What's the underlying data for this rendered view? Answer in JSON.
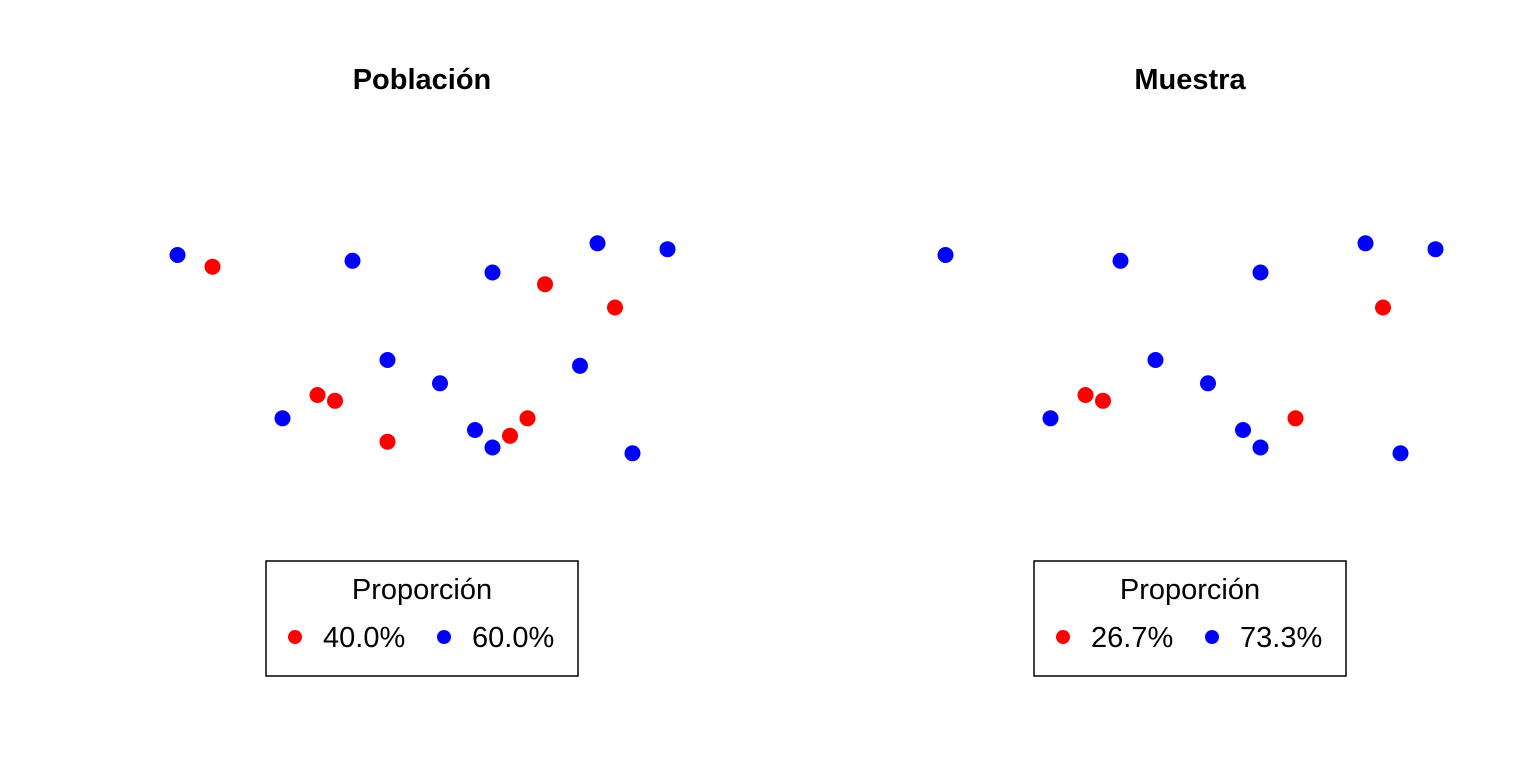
{
  "chart_data": [
    {
      "type": "scatter",
      "title": "Población",
      "xlabel": "",
      "ylabel": "",
      "xlim": [
        0,
        30
      ],
      "ylim": [
        0,
        30
      ],
      "grid": false,
      "axes_visible": false,
      "legend_position": "bottom",
      "legend": {
        "title": "Proporción",
        "entries": [
          {
            "label": "40.0%",
            "color": "#ff0000"
          },
          {
            "label": "60.0%",
            "color": "#0000ff"
          }
        ]
      },
      "series": [
        {
          "color": "#ff0000",
          "points": [
            [
              3,
              23
            ],
            [
              9,
              12
            ],
            [
              10,
              11.5
            ],
            [
              13,
              8
            ],
            [
              20,
              8.5
            ],
            [
              21,
              10
            ],
            [
              22,
              21.5
            ],
            [
              26,
              19.5
            ]
          ]
        },
        {
          "color": "#0000ff",
          "points": [
            [
              1,
              24
            ],
            [
              7,
              10
            ],
            [
              11,
              23.5
            ],
            [
              13,
              15
            ],
            [
              16,
              13
            ],
            [
              18,
              9
            ],
            [
              19,
              22.5
            ],
            [
              19,
              7.5
            ],
            [
              24,
              14.5
            ],
            [
              25,
              25
            ],
            [
              27,
              7
            ],
            [
              29,
              24.5
            ]
          ]
        }
      ]
    },
    {
      "type": "scatter",
      "title": "Muestra",
      "xlabel": "",
      "ylabel": "",
      "xlim": [
        0,
        30
      ],
      "ylim": [
        0,
        30
      ],
      "grid": false,
      "axes_visible": false,
      "legend_position": "bottom",
      "legend": {
        "title": "Proporción",
        "entries": [
          {
            "label": "26.7%",
            "color": "#ff0000"
          },
          {
            "label": "73.3%",
            "color": "#0000ff"
          }
        ]
      },
      "series": [
        {
          "color": "#ff0000",
          "points": [
            [
              9,
              12
            ],
            [
              10,
              11.5
            ],
            [
              21,
              10
            ],
            [
              26,
              19.5
            ]
          ]
        },
        {
          "color": "#0000ff",
          "points": [
            [
              1,
              24
            ],
            [
              7,
              10
            ],
            [
              11,
              23.5
            ],
            [
              13,
              15
            ],
            [
              16,
              13
            ],
            [
              18,
              9
            ],
            [
              19,
              22.5
            ],
            [
              19,
              7.5
            ],
            [
              25,
              25
            ],
            [
              27,
              7
            ],
            [
              29,
              24.5
            ]
          ]
        }
      ]
    }
  ]
}
